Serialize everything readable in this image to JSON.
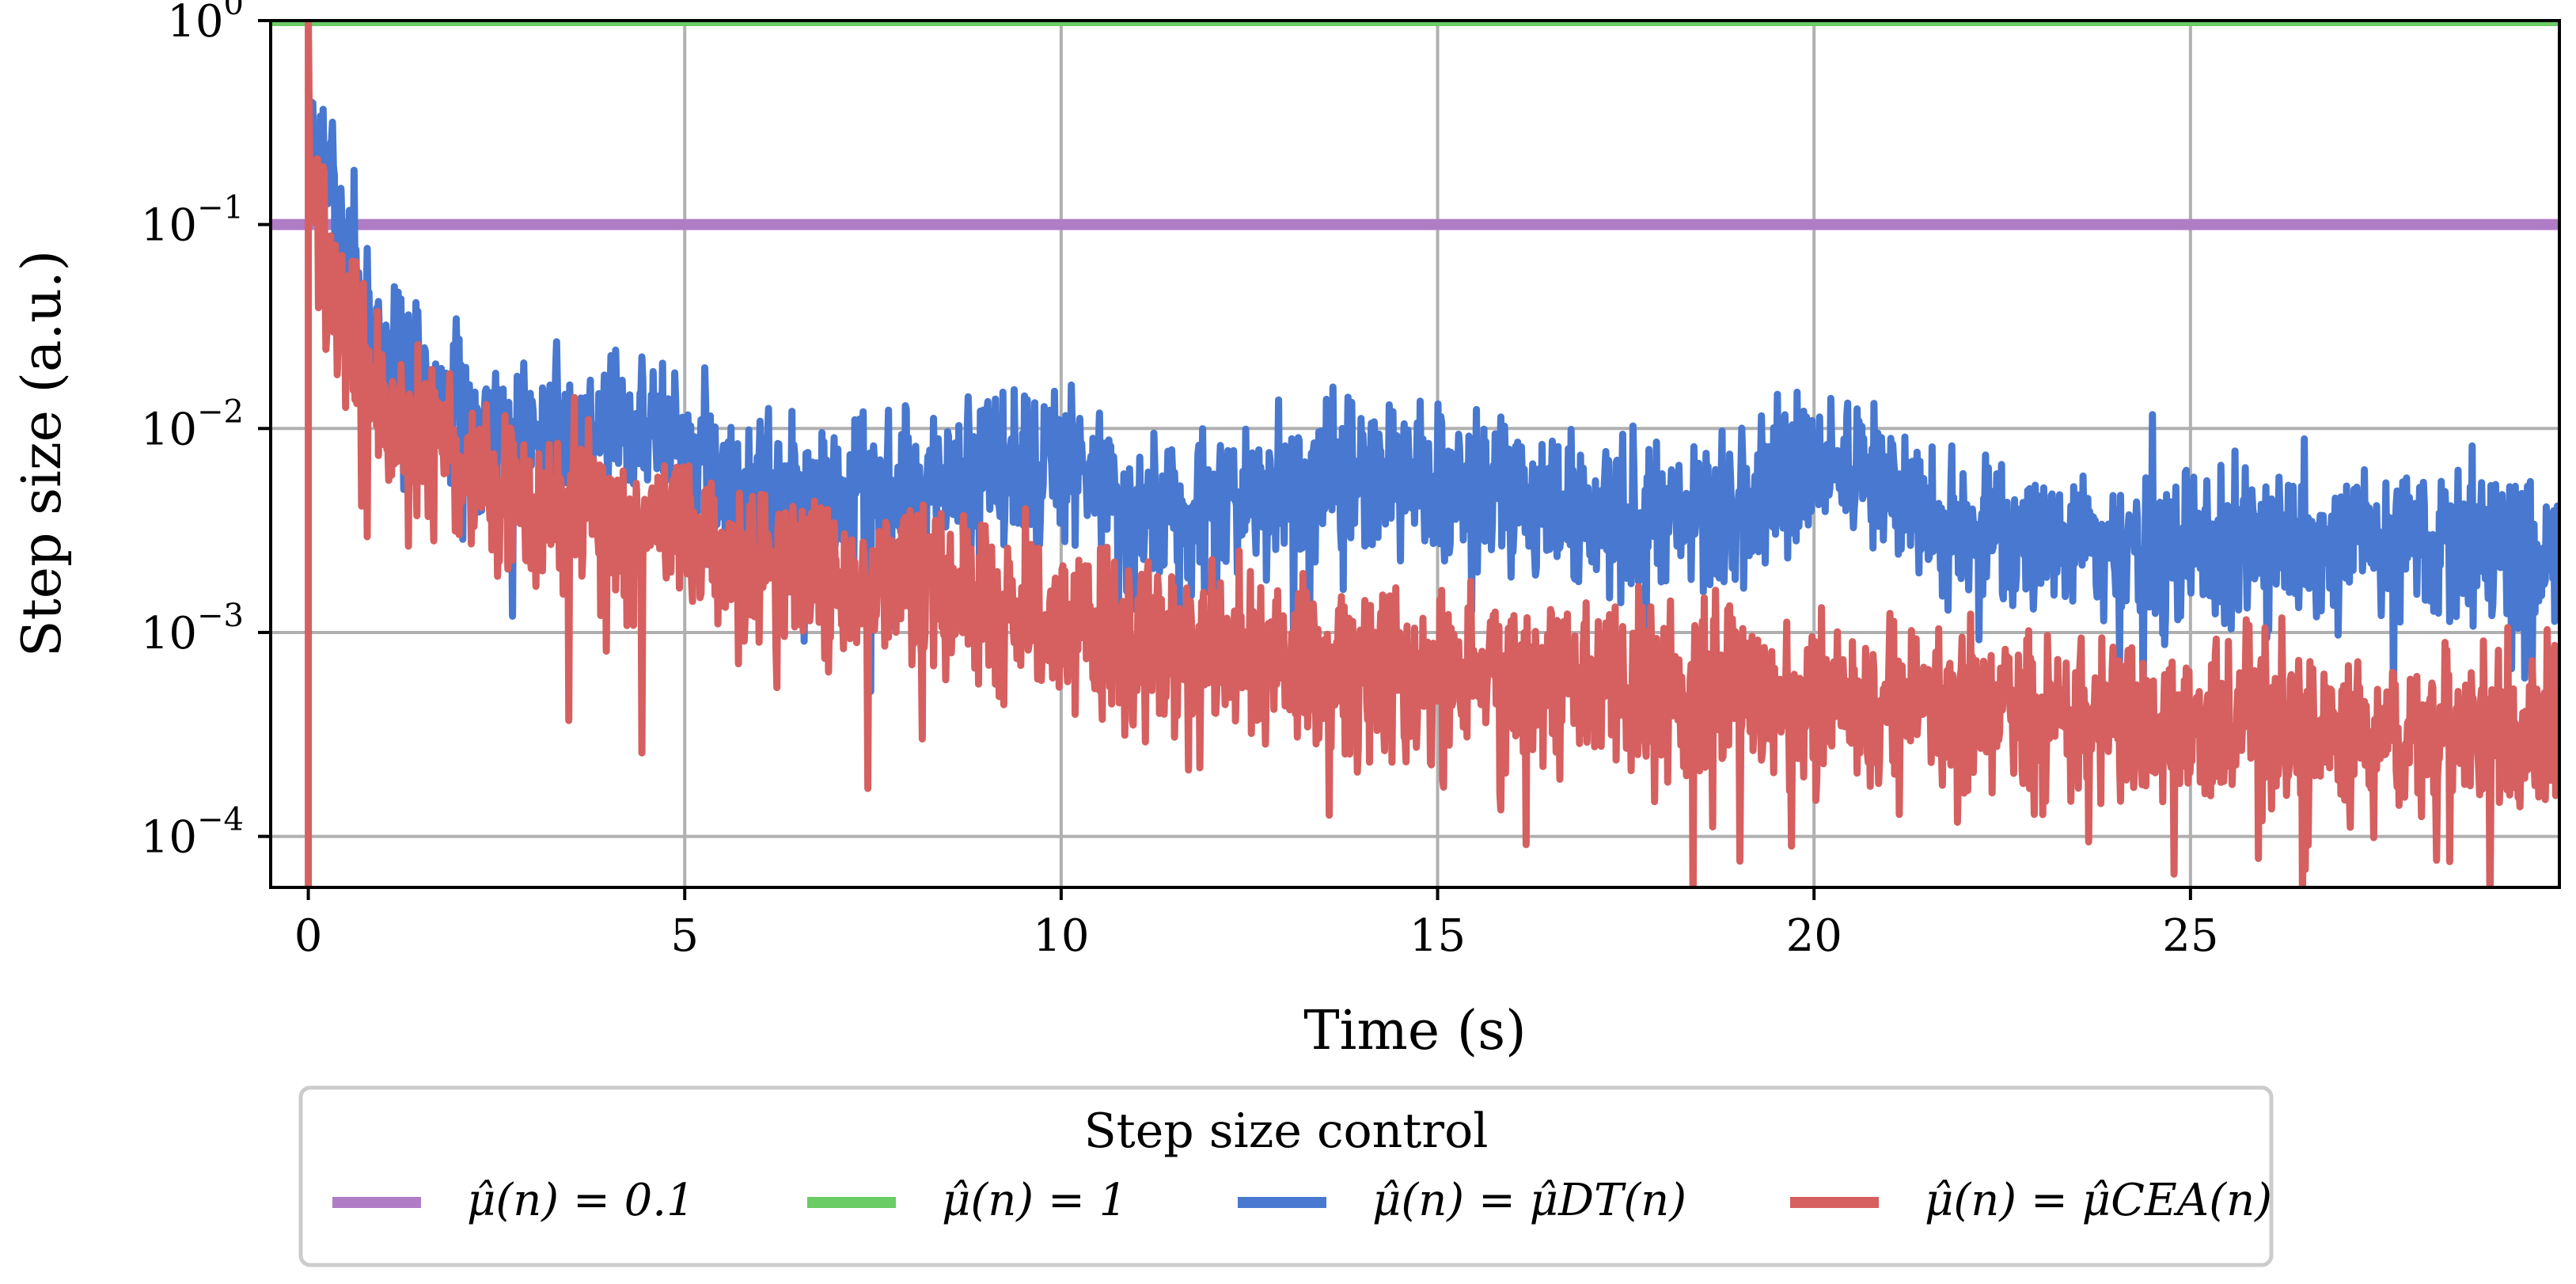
{
  "chart_data": {
    "type": "line",
    "xlabel": "Time (s)",
    "ylabel": "Step size (a.u.)",
    "yscale": "log",
    "xlim": [
      -0.5,
      29.9
    ],
    "ylim_exp": [
      -4.25,
      0.0
    ],
    "x_ticks": [
      {
        "value": 0,
        "label": "0"
      },
      {
        "value": 5,
        "label": "5"
      },
      {
        "value": 10,
        "label": "10"
      },
      {
        "value": 15,
        "label": "15"
      },
      {
        "value": 20,
        "label": "20"
      },
      {
        "value": 25,
        "label": "25"
      }
    ],
    "y_ticks": [
      {
        "value": 1,
        "base": "10",
        "exp": "0"
      },
      {
        "value": 0.1,
        "base": "10",
        "exp": "−1"
      },
      {
        "value": 0.01,
        "base": "10",
        "exp": "−2"
      },
      {
        "value": 0.001,
        "base": "10",
        "exp": "−3"
      },
      {
        "value": 0.0001,
        "base": "10",
        "exp": "−4"
      }
    ],
    "grid": true,
    "legend": {
      "title": "Step size control",
      "placement": "below",
      "entries": [
        {
          "text": "μ̂(n) = 0.1",
          "color": "#b07cc6"
        },
        {
          "text": "μ̂(n) = 1",
          "color": "#6acc64"
        },
        {
          "text": "μ̂(n) = μ̂DT(n)",
          "color": "#4878d0"
        },
        {
          "text": "μ̂(n) = μ̂CEA(n)",
          "color": "#d65f5f"
        }
      ]
    },
    "series": [
      {
        "name": "μ̂(n) = 0.1",
        "color": "#b07cc6",
        "kind": "constant",
        "value": 0.1
      },
      {
        "name": "μ̂(n) = 1",
        "color": "#6acc64",
        "kind": "constant",
        "value": 1
      },
      {
        "name": "μ̂(n) = μ̂DT(n)",
        "color": "#4878d0",
        "kind": "noisy",
        "trend": [
          [
            0,
            0.3
          ],
          [
            0.2,
            0.2
          ],
          [
            0.5,
            0.06
          ],
          [
            1,
            0.025
          ],
          [
            2,
            0.012
          ],
          [
            3,
            0.009
          ],
          [
            4,
            0.011
          ],
          [
            5,
            0.008
          ],
          [
            6,
            0.005
          ],
          [
            7,
            0.004
          ],
          [
            8,
            0.005
          ],
          [
            9,
            0.006
          ],
          [
            10,
            0.007
          ],
          [
            11,
            0.004
          ],
          [
            12,
            0.0035
          ],
          [
            13,
            0.005
          ],
          [
            14,
            0.006
          ],
          [
            15,
            0.005
          ],
          [
            16,
            0.0045
          ],
          [
            17,
            0.004
          ],
          [
            18,
            0.0035
          ],
          [
            19,
            0.004
          ],
          [
            20,
            0.007
          ],
          [
            21,
            0.005
          ],
          [
            22,
            0.003
          ],
          [
            23,
            0.0028
          ],
          [
            24,
            0.0025
          ],
          [
            25,
            0.0025
          ],
          [
            26,
            0.0023
          ],
          [
            27,
            0.003
          ],
          [
            28,
            0.0028
          ],
          [
            29,
            0.0026
          ],
          [
            29.9,
            0.0025
          ]
        ],
        "spread": 0.18,
        "seed": 7,
        "start_spike_max": 0.47
      },
      {
        "name": "μ̂(n) = μ̂CEA(n)",
        "color": "#d65f5f",
        "kind": "noisy",
        "trend": [
          [
            0,
            0.15
          ],
          [
            0.3,
            0.06
          ],
          [
            0.5,
            0.03
          ],
          [
            1,
            0.012
          ],
          [
            2,
            0.006
          ],
          [
            3,
            0.004
          ],
          [
            4,
            0.0035
          ],
          [
            5,
            0.003
          ],
          [
            6,
            0.002
          ],
          [
            7,
            0.0018
          ],
          [
            8,
            0.0017
          ],
          [
            9,
            0.0013
          ],
          [
            10,
            0.001
          ],
          [
            11,
            0.0009
          ],
          [
            12,
            0.0008
          ],
          [
            13,
            0.0007
          ],
          [
            14,
            0.0007
          ],
          [
            15,
            0.0006
          ],
          [
            16,
            0.0006
          ],
          [
            17,
            0.00055
          ],
          [
            18,
            0.0005
          ],
          [
            19,
            0.0005
          ],
          [
            20,
            0.00045
          ],
          [
            21,
            0.00045
          ],
          [
            22,
            0.0004
          ],
          [
            23,
            0.0004
          ],
          [
            24,
            0.00038
          ],
          [
            25,
            0.00036
          ],
          [
            26,
            0.00035
          ],
          [
            27,
            0.00034
          ],
          [
            28,
            0.00033
          ],
          [
            29,
            0.00032
          ],
          [
            29.9,
            0.00032
          ]
        ],
        "spread": 0.2,
        "seed": 13,
        "start_spike_max": 1.0,
        "start_dip": 5e-05
      }
    ]
  }
}
